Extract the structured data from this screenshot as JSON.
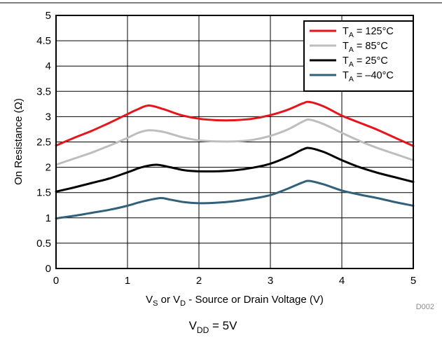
{
  "chart_data": {
    "type": "line",
    "xlabel": {
      "pre": "V",
      "sub1": "S",
      "mid": " or V",
      "sub2": "D",
      "post": " - Source or Drain Voltage (V)"
    },
    "ylabel": "On Resistance (Ω)",
    "xlim": [
      0,
      5
    ],
    "ylim": [
      0,
      5
    ],
    "x_ticks": [
      "0",
      "1",
      "2",
      "3",
      "4",
      "5"
    ],
    "y_ticks": [
      "0",
      "0.5",
      "1",
      "1.5",
      "2",
      "2.5",
      "3",
      "3.5",
      "4",
      "4.5",
      "5"
    ],
    "grid": true,
    "legend_position": "top-right",
    "series": [
      {
        "name": {
          "pre": "T",
          "sub": "A",
          "post": " = 125°C"
        },
        "color": "#e8141b",
        "x": [
          0,
          0.25,
          0.5,
          0.75,
          1.0,
          1.15,
          1.3,
          1.5,
          1.75,
          2.0,
          2.25,
          2.5,
          2.75,
          3.0,
          3.25,
          3.45,
          3.55,
          3.75,
          4.0,
          4.25,
          4.5,
          4.75,
          5.0
        ],
        "y": [
          2.43,
          2.58,
          2.72,
          2.88,
          3.05,
          3.15,
          3.22,
          3.15,
          3.03,
          2.96,
          2.93,
          2.93,
          2.96,
          3.03,
          3.14,
          3.26,
          3.29,
          3.2,
          3.02,
          2.88,
          2.74,
          2.58,
          2.42
        ]
      },
      {
        "name": {
          "pre": "T",
          "sub": "A",
          "post": " = 85°C"
        },
        "color": "#bdbdbd",
        "x": [
          0,
          0.25,
          0.5,
          0.75,
          1.0,
          1.15,
          1.3,
          1.5,
          1.75,
          2.0,
          2.25,
          2.5,
          2.75,
          3.0,
          3.25,
          3.45,
          3.55,
          3.75,
          4.0,
          4.25,
          4.5,
          4.75,
          5.0
        ],
        "y": [
          2.05,
          2.17,
          2.29,
          2.43,
          2.58,
          2.68,
          2.73,
          2.7,
          2.6,
          2.53,
          2.51,
          2.51,
          2.54,
          2.62,
          2.75,
          2.9,
          2.94,
          2.85,
          2.68,
          2.52,
          2.38,
          2.26,
          2.14
        ]
      },
      {
        "name": {
          "pre": "T",
          "sub": "A",
          "post": " = 25°C"
        },
        "color": "#000000",
        "x": [
          0,
          0.25,
          0.5,
          0.75,
          1.0,
          1.2,
          1.4,
          1.6,
          1.8,
          2.0,
          2.25,
          2.5,
          2.75,
          3.0,
          3.25,
          3.45,
          3.55,
          3.75,
          4.0,
          4.25,
          4.5,
          4.75,
          5.0
        ],
        "y": [
          1.52,
          1.6,
          1.69,
          1.78,
          1.9,
          2.0,
          2.05,
          2.0,
          1.94,
          1.92,
          1.92,
          1.94,
          1.99,
          2.07,
          2.21,
          2.35,
          2.38,
          2.3,
          2.14,
          2.0,
          1.89,
          1.8,
          1.71
        ]
      },
      {
        "name": {
          "pre": "T",
          "sub": "A",
          "post": " = –40°C"
        },
        "color": "#31617a",
        "x": [
          0,
          0.25,
          0.5,
          0.75,
          1.0,
          1.2,
          1.45,
          1.6,
          1.8,
          2.0,
          2.25,
          2.5,
          2.75,
          3.0,
          3.25,
          3.45,
          3.55,
          3.75,
          4.0,
          4.25,
          4.5,
          4.75,
          5.0
        ],
        "y": [
          0.99,
          1.04,
          1.1,
          1.16,
          1.24,
          1.32,
          1.39,
          1.36,
          1.31,
          1.29,
          1.3,
          1.33,
          1.38,
          1.45,
          1.58,
          1.7,
          1.73,
          1.66,
          1.54,
          1.46,
          1.39,
          1.31,
          1.24
        ]
      }
    ],
    "code": "D002",
    "caption": {
      "pre": "V",
      "sub": "DD",
      "post": " = 5V"
    }
  }
}
